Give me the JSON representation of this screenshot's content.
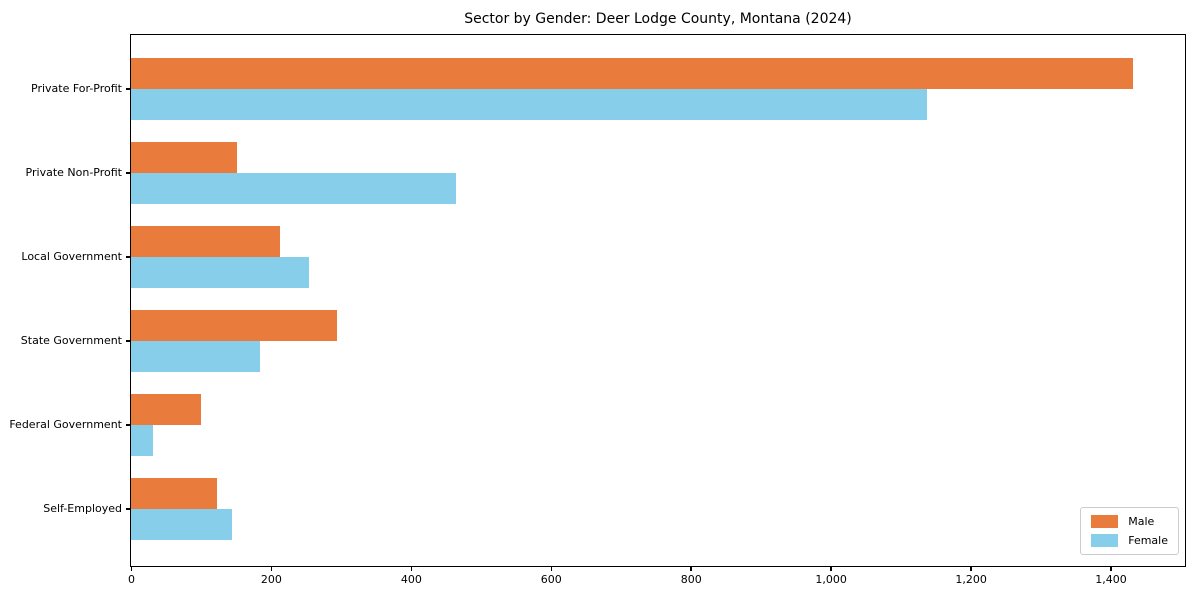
{
  "chart_data": {
    "type": "bar",
    "orientation": "horizontal",
    "title": "Sector by Gender: Deer Lodge County, Montana (2024)",
    "categories": [
      "Private For-Profit",
      "Private Non-Profit",
      "Local Government",
      "State Government",
      "Federal Government",
      "Self-Employed"
    ],
    "series": [
      {
        "name": "Male",
        "color": "#E97C3C",
        "values": [
          1432,
          152,
          213,
          295,
          100,
          123
        ]
      },
      {
        "name": "Female",
        "color": "#87CEEB",
        "values": [
          1137,
          465,
          254,
          184,
          31,
          144
        ]
      }
    ],
    "xlabel": "",
    "ylabel": "",
    "xlim": [
      0,
      1505
    ],
    "xticks": [
      0,
      200,
      400,
      600,
      800,
      1000,
      1200,
      1400
    ],
    "xtick_labels": [
      "0",
      "200",
      "400",
      "600",
      "800",
      "1,000",
      "1,200",
      "1,400"
    ],
    "legend_position": "lower right",
    "grid": false,
    "colors": {
      "axis": "#000000",
      "background": "#ffffff",
      "legend_border": "#cccccc",
      "text": "#000000"
    }
  }
}
